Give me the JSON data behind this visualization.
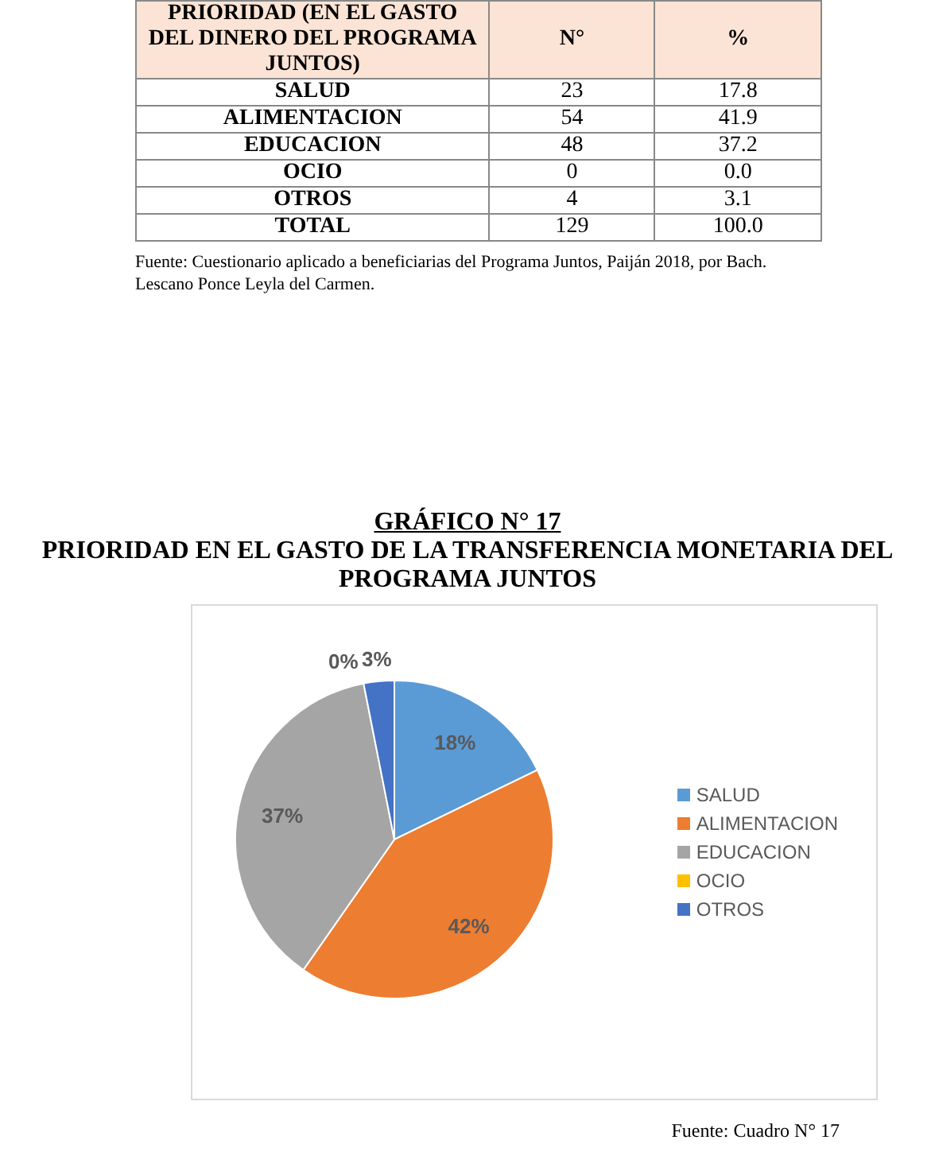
{
  "chart_data": [
    {
      "type": "other",
      "annotations": [
        "PRIORIDAD (EN EL GASTO DEL DINERO DEL PROGRAMA JUNTOS)",
        "N°",
        "%",
        "SALUD",
        "23",
        "17.8",
        "ALIMENTACION",
        "54",
        "41.9",
        "EDUCACION",
        "48",
        "37.2",
        "OCIO",
        "0",
        "0.0",
        "OTROS",
        "4",
        "3.1",
        "TOTAL",
        "129",
        "100.0",
        "Fuente: Cuestionario aplicado a beneficiarias del Programa Juntos, Paiján 2018, por Bach. Lescano Ponce Leyla del Carmen."
      ]
    },
    {
      "type": "pie",
      "title": "GRÁFICO N° 17",
      "subtitle": "PRIORIDAD EN EL GASTO DE LA TRANSFERENCIA MONETARIA DEL PROGRAMA JUNTOS",
      "categories": [
        "SALUD",
        "ALIMENTACION",
        "EDUCACION",
        "OCIO",
        "OTROS"
      ],
      "values": [
        17.8,
        41.9,
        37.2,
        0,
        3.1
      ],
      "colors": [
        "#5b9bd5",
        "#ed7d31",
        "#a5a5a5",
        "#ffc000",
        "#4472c4"
      ],
      "value_labels": [
        "18%",
        "42%",
        "37%",
        "0%",
        "3%"
      ],
      "legend": "right",
      "annotations": [
        "Fuente: Cuadro N° 17"
      ]
    }
  ]
}
